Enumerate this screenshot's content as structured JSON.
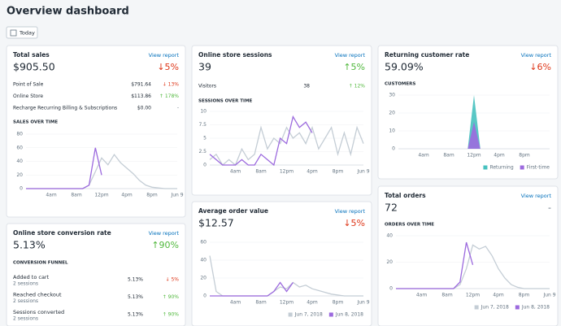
{
  "header": {
    "title": "Overview dashboard",
    "button": "Today"
  },
  "cards": [
    {
      "title": "Total sales",
      "link": "View report",
      "value": "$905.50",
      "change": "↓5%",
      "rows": [
        [
          "Point of Sale",
          "$791.64",
          "↓ 13%"
        ],
        [
          "Online Store",
          "$113.86",
          "↑ 178%"
        ],
        [
          "Recharge Recurring Billing & Subscriptions",
          "$0.00",
          "-"
        ]
      ],
      "section": "SALES OVER TIME",
      "chart": {
        "type": "line",
        "categories": [
          null,
          null,
          null,
          null,
          "4am",
          null,
          null,
          null,
          "8am",
          null,
          null,
          null,
          "12pm",
          null,
          null,
          null,
          "4pm",
          null,
          null,
          null,
          "8pm",
          null,
          null,
          null,
          "Jun 9"
        ],
        "series": [
          {
            "color": "#c4cdd5",
            "values": [
              0,
              0,
              0,
              0,
              0,
              0,
              0,
              0,
              0,
              0,
              5,
              25,
              45,
              35,
              50,
              38,
              30,
              22,
              12,
              5,
              2,
              1,
              0,
              0,
              0
            ]
          },
          {
            "color": "#9c6ade",
            "values": [
              0,
              0,
              0,
              0,
              0,
              0,
              0,
              0,
              0,
              0,
              5,
              60,
              20
            ]
          }
        ],
        "ylim": [
          0,
          80
        ],
        "yticks": [
          0,
          20,
          40,
          60,
          80
        ]
      }
    },
    {
      "title": "Online store sessions",
      "link": "View report",
      "value": "39",
      "change": "↑5%",
      "rows": [
        [
          "Visitors",
          "38",
          "↑ 12%"
        ]
      ],
      "section": "SESSIONS OVER TIME",
      "chart": {
        "type": "line",
        "categories": [
          null,
          null,
          null,
          null,
          "4am",
          null,
          null,
          null,
          "8am",
          null,
          null,
          null,
          "12pm",
          null,
          null,
          null,
          "4pm",
          null,
          null,
          null,
          "8pm",
          null,
          null,
          null,
          "Jun 9"
        ],
        "series": [
          {
            "color": "#c4cdd5",
            "values": [
              1,
              2,
              0,
              1,
              0,
              3,
              1,
              2,
              7,
              3,
              5,
              4,
              7,
              5,
              6,
              4,
              7,
              3,
              5,
              7,
              2,
              6,
              2,
              7,
              4
            ]
          },
          {
            "color": "#9c6ade",
            "values": [
              2,
              1,
              0,
              0,
              0,
              1,
              0,
              0,
              2,
              1,
              0,
              5,
              4,
              9,
              7,
              8,
              6
            ]
          }
        ],
        "ylim": [
          0,
          10
        ],
        "yticks": [
          0,
          2.5,
          5,
          7.5,
          10
        ]
      }
    },
    {
      "title": "Returning customer rate",
      "link": "View report",
      "value": "59.09%",
      "change": "↓6%",
      "section": "CUSTOMERS",
      "chart": {
        "type": "area",
        "categories": [
          null,
          null,
          null,
          null,
          "4am",
          null,
          null,
          null,
          "8am",
          null,
          null,
          null,
          "12pm",
          null,
          null,
          null,
          "4pm",
          null,
          null,
          null,
          "8pm",
          null,
          null,
          null,
          null
        ],
        "series": [
          {
            "name": "Returning",
            "color": "#47c1bf",
            "values": [
              0,
              0,
              0,
              0,
              0,
              0,
              0,
              0,
              0,
              0,
              0,
              0,
              30,
              0,
              0,
              0,
              0,
              0,
              0,
              0,
              0,
              0,
              0,
              0,
              0
            ]
          },
          {
            "name": "First-time",
            "color": "#9c6ade",
            "values": [
              0,
              0,
              0,
              0,
              0,
              0,
              0,
              0,
              0,
              0,
              0,
              0,
              15,
              0,
              0,
              0,
              0,
              0,
              0,
              0,
              0,
              0,
              0,
              0,
              0
            ]
          }
        ],
        "ylim": [
          0,
          30
        ],
        "yticks": [
          0,
          10,
          20,
          30
        ],
        "legend": "bottom-right"
      }
    },
    {
      "title": "Online store conversion rate",
      "link": "View report",
      "value": "5.13%",
      "change": "↑90%",
      "section": "CONVERSION FUNNEL",
      "funnel": [
        [
          "Added to cart",
          "2 sessions",
          "5.13%",
          "↓ 5%"
        ],
        [
          "Reached checkout",
          "2 sessions",
          "5.13%",
          "↑ 90%"
        ],
        [
          "Sessions converted",
          "2 sessions",
          "5.13%",
          "↑ 90%"
        ]
      ]
    },
    {
      "title": "Average order value",
      "link": "View report",
      "value": "$12.57",
      "change": "↓5%",
      "chart": {
        "type": "line",
        "categories": [
          null,
          null,
          null,
          null,
          "4am",
          null,
          null,
          null,
          "8am",
          null,
          null,
          null,
          "12pm",
          null,
          null,
          null,
          "4pm",
          null,
          null,
          null,
          "8pm",
          null,
          null,
          null,
          "Jun 9"
        ],
        "series": [
          {
            "name": "Jun 7, 2018",
            "color": "#c4cdd5",
            "values": [
              45,
              5,
              0,
              0,
              0,
              0,
              0,
              0,
              0,
              0,
              5,
              10,
              8,
              15,
              10,
              12,
              8,
              6,
              4,
              2,
              1,
              0,
              0,
              0,
              0
            ]
          },
          {
            "name": "Jun 8, 2018",
            "color": "#9c6ade",
            "values": [
              0,
              0,
              0,
              0,
              0,
              0,
              0,
              0,
              0,
              0,
              5,
              15,
              5,
              15
            ]
          }
        ],
        "ylim": [
          0,
          60
        ],
        "yticks": [
          0,
          20,
          40,
          60
        ],
        "legend": "bottom-right"
      }
    },
    {
      "title": "Total orders",
      "link": "View report",
      "value": "72",
      "change": "-",
      "section": "ORDERS OVER TIME",
      "chart": {
        "type": "line",
        "categories": [
          null,
          null,
          null,
          null,
          "4am",
          null,
          null,
          null,
          "8am",
          null,
          null,
          null,
          "12pm",
          null,
          null,
          null,
          "4pm",
          null,
          null,
          null,
          "8pm",
          null,
          null,
          null,
          "Jun 9"
        ],
        "series": [
          {
            "name": "Jun 7, 2018",
            "color": "#c4cdd5",
            "values": [
              0,
              0,
              0,
              0,
              0,
              0,
              0,
              0,
              0,
              0,
              3,
              15,
              33,
              30,
              32,
              25,
              15,
              8,
              3,
              1,
              0,
              0,
              0,
              0,
              0
            ]
          },
          {
            "name": "Jun 8, 2018",
            "color": "#9c6ade",
            "values": [
              0,
              0,
              0,
              0,
              0,
              0,
              0,
              0,
              0,
              0,
              5,
              35,
              18
            ]
          }
        ],
        "ylim": [
          0,
          40
        ],
        "yticks": [
          0,
          20,
          40
        ],
        "legend": "bottom-right"
      }
    }
  ]
}
